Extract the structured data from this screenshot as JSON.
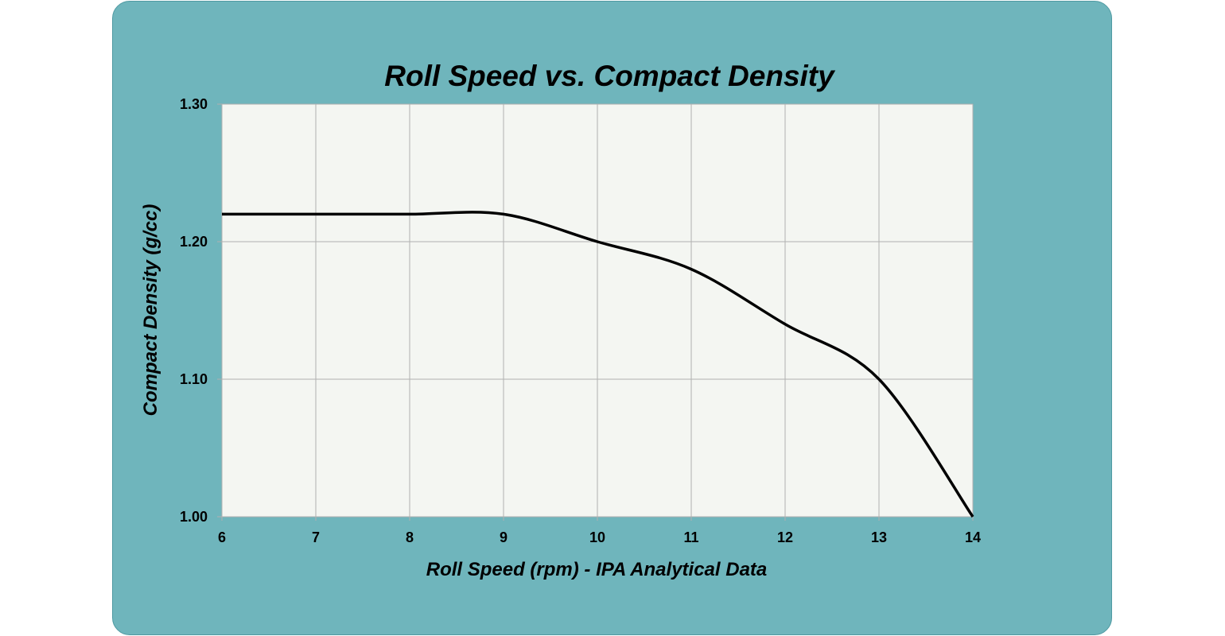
{
  "chart_data": {
    "type": "line",
    "title": "Roll Speed vs. Compact Density",
    "xlabel": "Roll Speed (rpm) - IPA Analytical Data",
    "ylabel": "Compact Density (g/cc)",
    "xlim": [
      6,
      14
    ],
    "ylim": [
      1.0,
      1.3
    ],
    "x_ticks": [
      "6",
      "7",
      "8",
      "9",
      "10",
      "11",
      "12",
      "13",
      "14"
    ],
    "y_ticks": [
      "1.00",
      "1.10",
      "1.20",
      "1.30"
    ],
    "grid": true,
    "smoothed": true,
    "series": [
      {
        "x": [
          6,
          7,
          8,
          9,
          10,
          11,
          12,
          13,
          14
        ],
        "y": [
          1.22,
          1.22,
          1.22,
          1.22,
          1.2,
          1.18,
          1.14,
          1.1,
          1.0
        ],
        "color": "#000000"
      }
    ],
    "colors": {
      "background": "#6fb5bc",
      "plot_area": "#f4f6f2",
      "grid": "#b0b0b0"
    }
  }
}
